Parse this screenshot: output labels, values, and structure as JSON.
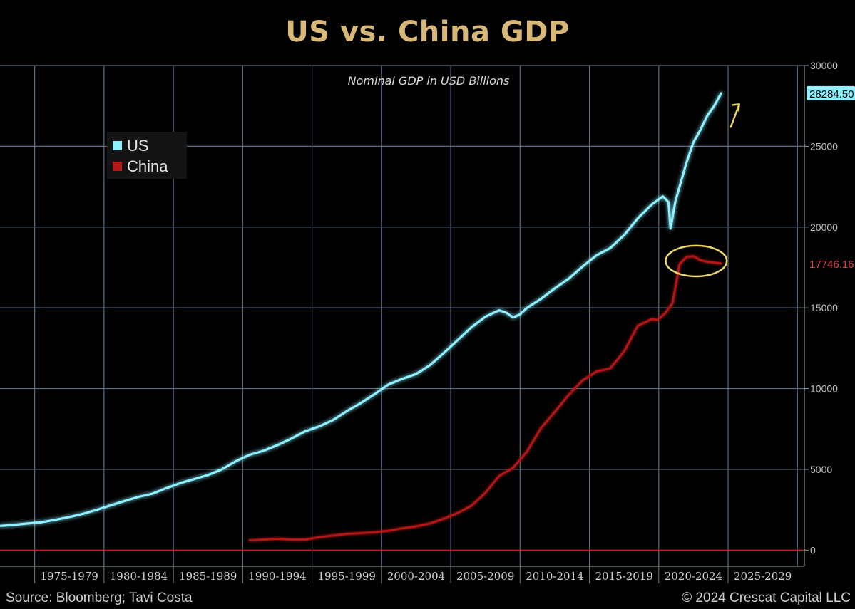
{
  "page": {
    "source": "Source: Bloomberg; Tavi Costa",
    "copyright": "© 2024 Crescat Capital LLC"
  },
  "colors": {
    "us": "#8ff0ff",
    "china": "#b31818",
    "grid": "#5a6f85",
    "title": "#d7b878",
    "annotation": "#ebd86a"
  },
  "chart_data": {
    "type": "line",
    "title": "US vs. China GDP",
    "subtitle": "Nominal GDP in USD Billions",
    "ylim": [
      -1000,
      30000
    ],
    "xlim": [
      1972.0,
      2030.0
    ],
    "y_ticks": [
      0,
      5000,
      10000,
      15000,
      20000,
      25000,
      30000
    ],
    "x_tick_labels": [
      "1975-1979",
      "1980-1984",
      "1985-1989",
      "1990-1994",
      "1995-1999",
      "2000-2004",
      "2005-2009",
      "2010-2014",
      "2015-2019",
      "2020-2024",
      "2025-2029"
    ],
    "grid": true,
    "legend_position": "top-left",
    "series": [
      {
        "name": "US",
        "last_value_label": "28284.50",
        "points": [
          [
            1972.0,
            1500
          ],
          [
            1973.0,
            1560
          ],
          [
            1974.0,
            1650
          ],
          [
            1975.0,
            1730
          ],
          [
            1976.0,
            1880
          ],
          [
            1977.0,
            2050
          ],
          [
            1978.0,
            2250
          ],
          [
            1979.0,
            2500
          ],
          [
            1980.0,
            2780
          ],
          [
            1981.0,
            3050
          ],
          [
            1982.0,
            3300
          ],
          [
            1983.0,
            3500
          ],
          [
            1984.0,
            3840
          ],
          [
            1985.0,
            4150
          ],
          [
            1986.0,
            4400
          ],
          [
            1987.0,
            4650
          ],
          [
            1988.0,
            5000
          ],
          [
            1989.0,
            5500
          ],
          [
            1990.0,
            5900
          ],
          [
            1991.0,
            6150
          ],
          [
            1992.0,
            6500
          ],
          [
            1993.0,
            6900
          ],
          [
            1994.0,
            7350
          ],
          [
            1995.0,
            7650
          ],
          [
            1996.0,
            8050
          ],
          [
            1997.0,
            8600
          ],
          [
            1998.0,
            9100
          ],
          [
            1999.0,
            9650
          ],
          [
            2000.0,
            10250
          ],
          [
            2001.0,
            10600
          ],
          [
            2002.0,
            10900
          ],
          [
            2003.0,
            11450
          ],
          [
            2004.0,
            12200
          ],
          [
            2005.0,
            13000
          ],
          [
            2006.0,
            13800
          ],
          [
            2007.0,
            14450
          ],
          [
            2008.0,
            14850
          ],
          [
            2008.5,
            14700
          ],
          [
            2009.0,
            14400
          ],
          [
            2009.5,
            14600
          ],
          [
            2010.0,
            15000
          ],
          [
            2011.0,
            15550
          ],
          [
            2012.0,
            16200
          ],
          [
            2013.0,
            16800
          ],
          [
            2014.0,
            17550
          ],
          [
            2015.0,
            18250
          ],
          [
            2016.0,
            18700
          ],
          [
            2017.0,
            19500
          ],
          [
            2018.0,
            20550
          ],
          [
            2019.0,
            21400
          ],
          [
            2019.8,
            21900
          ],
          [
            2020.2,
            21550
          ],
          [
            2020.35,
            19900
          ],
          [
            2020.7,
            21600
          ],
          [
            2021.0,
            22500
          ],
          [
            2021.5,
            24000
          ],
          [
            2022.0,
            25250
          ],
          [
            2022.5,
            26000
          ],
          [
            2023.0,
            26900
          ],
          [
            2023.5,
            27500
          ],
          [
            2024.0,
            28284.5
          ]
        ]
      },
      {
        "name": "China",
        "last_value_label": "17746.16",
        "points": [
          [
            1990.0,
            600
          ],
          [
            1991.0,
            650
          ],
          [
            1992.0,
            700
          ],
          [
            1993.0,
            650
          ],
          [
            1994.0,
            650
          ],
          [
            1995.0,
            800
          ],
          [
            1996.0,
            900
          ],
          [
            1997.0,
            1000
          ],
          [
            1998.0,
            1050
          ],
          [
            1999.0,
            1100
          ],
          [
            2000.0,
            1200
          ],
          [
            2001.0,
            1350
          ],
          [
            2002.0,
            1470
          ],
          [
            2003.0,
            1650
          ],
          [
            2004.0,
            1950
          ],
          [
            2005.0,
            2300
          ],
          [
            2006.0,
            2750
          ],
          [
            2007.0,
            3550
          ],
          [
            2008.0,
            4600
          ],
          [
            2009.0,
            5100
          ],
          [
            2010.0,
            6100
          ],
          [
            2011.0,
            7550
          ],
          [
            2012.0,
            8550
          ],
          [
            2013.0,
            9600
          ],
          [
            2014.0,
            10500
          ],
          [
            2015.0,
            11050
          ],
          [
            2016.0,
            11250
          ],
          [
            2017.0,
            12300
          ],
          [
            2018.0,
            13900
          ],
          [
            2019.0,
            14300
          ],
          [
            2019.4,
            14250
          ],
          [
            2020.0,
            14700
          ],
          [
            2020.5,
            15300
          ],
          [
            2021.0,
            17700
          ],
          [
            2021.5,
            18150
          ],
          [
            2022.0,
            18200
          ],
          [
            2022.5,
            17950
          ],
          [
            2023.0,
            17850
          ],
          [
            2023.5,
            17800
          ],
          [
            2024.0,
            17746.16
          ]
        ]
      }
    ],
    "annotations": [
      {
        "type": "ellipse",
        "center": [
          2022.2,
          17900
        ],
        "radius": [
          2.2,
          950
        ]
      },
      {
        "type": "arrow",
        "direction": "up-right",
        "from": [
          2024.7,
          26200
        ],
        "to": [
          2025.3,
          27600
        ]
      }
    ]
  }
}
